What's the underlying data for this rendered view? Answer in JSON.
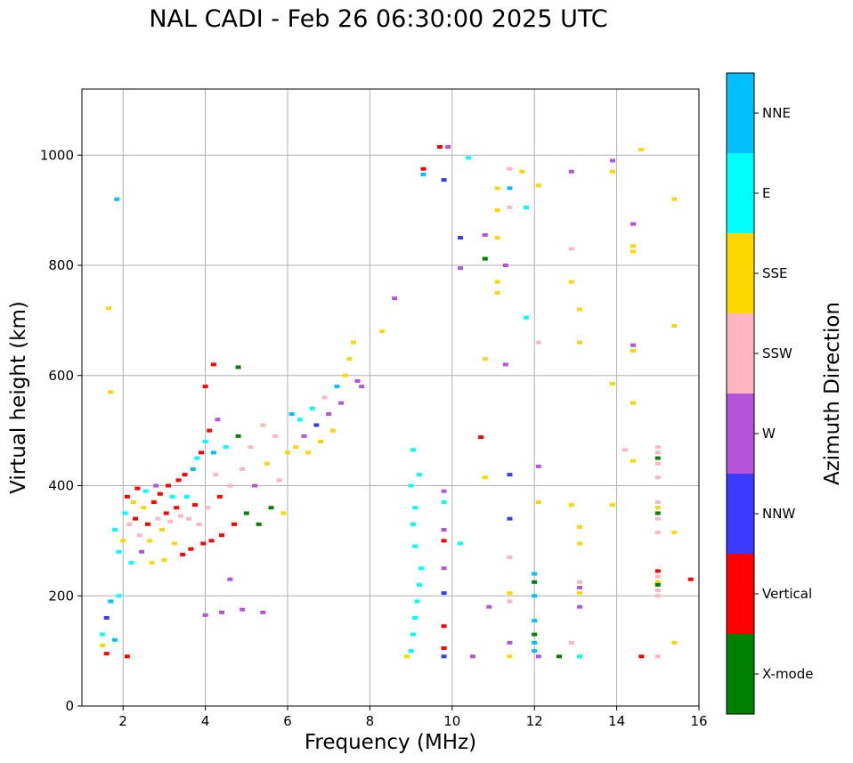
{
  "chart_data": {
    "type": "scatter",
    "title": "NAL CADI - Feb 26 06:30:00 2025 UTC",
    "xlabel": "Frequency (MHz)",
    "ylabel": "Virtual height (km)",
    "xlim": [
      1,
      16
    ],
    "ylim": [
      0,
      1120
    ],
    "xticks": [
      2,
      4,
      6,
      8,
      10,
      12,
      14,
      16
    ],
    "yticks": [
      0,
      200,
      400,
      600,
      800,
      1000
    ],
    "grid": true,
    "colorbar": {
      "label": "Azimuth Direction",
      "categories": [
        {
          "name": "X-mode",
          "color": "#008000"
        },
        {
          "name": "Vertical",
          "color": "#ff0000"
        },
        {
          "name": "NNW",
          "color": "#3a3aff"
        },
        {
          "name": "W",
          "color": "#b455d8"
        },
        {
          "name": "SSW",
          "color": "#ffb6c1"
        },
        {
          "name": "SSE",
          "color": "#ffd700"
        },
        {
          "name": "E",
          "color": "#00ffff"
        },
        {
          "name": "NNE",
          "color": "#00bfff"
        }
      ]
    },
    "points": [
      [
        1.5,
        110,
        "SSE"
      ],
      [
        1.5,
        130,
        "E"
      ],
      [
        1.6,
        95,
        "Vertical"
      ],
      [
        1.6,
        160,
        "NNW"
      ],
      [
        1.7,
        190,
        "NNE"
      ],
      [
        1.8,
        120,
        "NNE"
      ],
      [
        1.9,
        200,
        "E"
      ],
      [
        2.1,
        90,
        "Vertical"
      ],
      [
        1.85,
        920,
        "NNE"
      ],
      [
        1.65,
        722,
        "SSE"
      ],
      [
        1.7,
        570,
        "SSE"
      ],
      [
        1.8,
        320,
        "E"
      ],
      [
        1.9,
        280,
        "E"
      ],
      [
        2.0,
        300,
        "SSE"
      ],
      [
        2.05,
        350,
        "E"
      ],
      [
        2.1,
        380,
        "Vertical"
      ],
      [
        2.15,
        330,
        "SSW"
      ],
      [
        2.2,
        260,
        "E"
      ],
      [
        2.25,
        370,
        "SSE"
      ],
      [
        2.3,
        340,
        "Vertical"
      ],
      [
        2.35,
        395,
        "Vertical"
      ],
      [
        2.4,
        310,
        "SSW"
      ],
      [
        2.45,
        280,
        "W"
      ],
      [
        2.5,
        360,
        "SSE"
      ],
      [
        2.55,
        390,
        "E"
      ],
      [
        2.6,
        330,
        "Vertical"
      ],
      [
        2.65,
        300,
        "SSE"
      ],
      [
        2.7,
        260,
        "SSE"
      ],
      [
        2.75,
        370,
        "Vertical"
      ],
      [
        2.8,
        400,
        "W"
      ],
      [
        2.85,
        340,
        "SSW"
      ],
      [
        2.9,
        385,
        "Vertical"
      ],
      [
        2.95,
        320,
        "SSE"
      ],
      [
        3.0,
        265,
        "SSE"
      ],
      [
        3.05,
        350,
        "Vertical"
      ],
      [
        3.1,
        400,
        "Vertical"
      ],
      [
        3.15,
        335,
        "SSW"
      ],
      [
        3.2,
        380,
        "E"
      ],
      [
        3.25,
        295,
        "SSE"
      ],
      [
        3.3,
        360,
        "Vertical"
      ],
      [
        3.35,
        410,
        "Vertical"
      ],
      [
        3.4,
        345,
        "SSW"
      ],
      [
        3.45,
        275,
        "Vertical"
      ],
      [
        3.5,
        420,
        "Vertical"
      ],
      [
        3.55,
        380,
        "E"
      ],
      [
        3.6,
        340,
        "SSW"
      ],
      [
        3.65,
        285,
        "Vertical"
      ],
      [
        3.7,
        430,
        "NNE"
      ],
      [
        3.75,
        365,
        "Vertical"
      ],
      [
        3.8,
        450,
        "E"
      ],
      [
        3.85,
        330,
        "SSW"
      ],
      [
        3.9,
        460,
        "Vertical"
      ],
      [
        3.95,
        295,
        "Vertical"
      ],
      [
        4.0,
        480,
        "E"
      ],
      [
        4.05,
        360,
        "SSW"
      ],
      [
        4.1,
        500,
        "Vertical"
      ],
      [
        4.15,
        300,
        "Vertical"
      ],
      [
        4.2,
        460,
        "NNE"
      ],
      [
        4.25,
        420,
        "SSW"
      ],
      [
        4.3,
        520,
        "W"
      ],
      [
        4.35,
        380,
        "Vertical"
      ],
      [
        4.4,
        310,
        "Vertical"
      ],
      [
        4.5,
        470,
        "E"
      ],
      [
        4.6,
        400,
        "SSW"
      ],
      [
        4.7,
        330,
        "Vertical"
      ],
      [
        4.8,
        490,
        "Green"
      ],
      [
        4.9,
        430,
        "SSW"
      ],
      [
        5.0,
        350,
        "X-mode"
      ],
      [
        5.1,
        470,
        "SSW"
      ],
      [
        5.2,
        400,
        "W"
      ],
      [
        5.3,
        330,
        "X-mode"
      ],
      [
        5.4,
        510,
        "SSW"
      ],
      [
        5.5,
        440,
        "SSE"
      ],
      [
        5.6,
        360,
        "X-mode"
      ],
      [
        5.7,
        490,
        "SSW"
      ],
      [
        5.8,
        410,
        "SSW"
      ],
      [
        5.9,
        350,
        "SSE"
      ],
      [
        6.0,
        460,
        "SSE"
      ],
      [
        6.1,
        530,
        "NNE"
      ],
      [
        6.2,
        470,
        "SSE"
      ],
      [
        6.3,
        520,
        "E"
      ],
      [
        6.4,
        490,
        "W"
      ],
      [
        6.5,
        460,
        "SSE"
      ],
      [
        6.6,
        540,
        "E"
      ],
      [
        6.7,
        510,
        "NNW"
      ],
      [
        6.8,
        480,
        "SSE"
      ],
      [
        6.9,
        560,
        "SSW"
      ],
      [
        7.0,
        530,
        "W"
      ],
      [
        7.1,
        500,
        "SSE"
      ],
      [
        7.2,
        580,
        "NNE"
      ],
      [
        7.3,
        550,
        "W"
      ],
      [
        7.4,
        600,
        "SSE"
      ],
      [
        7.5,
        630,
        "SSE"
      ],
      [
        7.6,
        660,
        "SSE"
      ],
      [
        7.7,
        590,
        "W"
      ],
      [
        7.8,
        580,
        "W"
      ],
      [
        4.0,
        580,
        "Vertical"
      ],
      [
        4.2,
        620,
        "Vertical"
      ],
      [
        4.8,
        615,
        "X-mode"
      ],
      [
        4.0,
        165,
        "W"
      ],
      [
        4.4,
        170,
        "W"
      ],
      [
        4.6,
        230,
        "W"
      ],
      [
        4.9,
        175,
        "W"
      ],
      [
        5.4,
        170,
        "W"
      ],
      [
        8.3,
        680,
        "SSE"
      ],
      [
        8.6,
        740,
        "W"
      ],
      [
        8.9,
        90,
        "SSE"
      ],
      [
        9.0,
        100,
        "E"
      ],
      [
        9.05,
        130,
        "E"
      ],
      [
        9.1,
        160,
        "E"
      ],
      [
        9.15,
        190,
        "E"
      ],
      [
        9.2,
        220,
        "E"
      ],
      [
        9.25,
        250,
        "E"
      ],
      [
        9.1,
        290,
        "E"
      ],
      [
        9.05,
        330,
        "E"
      ],
      [
        9.1,
        360,
        "E"
      ],
      [
        9.0,
        400,
        "E"
      ],
      [
        9.05,
        465,
        "E"
      ],
      [
        9.2,
        420,
        "E"
      ],
      [
        9.3,
        975,
        "Vertical"
      ],
      [
        9.3,
        965,
        "NNE"
      ],
      [
        9.8,
        955,
        "NNW"
      ],
      [
        9.7,
        1015,
        "Vertical"
      ],
      [
        9.9,
        1015,
        "W"
      ],
      [
        9.8,
        390,
        "W"
      ],
      [
        9.8,
        320,
        "W"
      ],
      [
        9.8,
        300,
        "Vertical"
      ],
      [
        9.8,
        250,
        "W"
      ],
      [
        9.8,
        205,
        "NNW"
      ],
      [
        9.8,
        145,
        "Vertical"
      ],
      [
        9.8,
        105,
        "Vertical"
      ],
      [
        9.8,
        90,
        "NNW"
      ],
      [
        9.8,
        370,
        "E"
      ],
      [
        10.2,
        295,
        "E"
      ],
      [
        10.2,
        850,
        "NNW"
      ],
      [
        10.2,
        795,
        "W"
      ],
      [
        10.4,
        995,
        "E"
      ],
      [
        10.5,
        90,
        "W"
      ],
      [
        10.7,
        488,
        "Vertical"
      ],
      [
        10.8,
        630,
        "SSE"
      ],
      [
        10.8,
        415,
        "SSE"
      ],
      [
        10.9,
        180,
        "W"
      ],
      [
        10.8,
        812,
        "X-mode"
      ],
      [
        10.8,
        855,
        "W"
      ],
      [
        11.1,
        940,
        "SSE"
      ],
      [
        11.1,
        900,
        "SSE"
      ],
      [
        11.1,
        850,
        "SSE"
      ],
      [
        11.1,
        770,
        "SSE"
      ],
      [
        11.1,
        750,
        "SSE"
      ],
      [
        11.3,
        800,
        "W"
      ],
      [
        11.3,
        620,
        "W"
      ],
      [
        11.4,
        975,
        "SSW"
      ],
      [
        11.4,
        940,
        "NNE"
      ],
      [
        11.4,
        905,
        "SSW"
      ],
      [
        11.4,
        420,
        "NNW"
      ],
      [
        11.4,
        340,
        "NNW"
      ],
      [
        11.4,
        270,
        "SSW"
      ],
      [
        11.4,
        205,
        "SSE"
      ],
      [
        11.4,
        190,
        "SSW"
      ],
      [
        11.4,
        115,
        "W"
      ],
      [
        11.4,
        90,
        "SSE"
      ],
      [
        11.7,
        970,
        "SSE"
      ],
      [
        11.8,
        905,
        "E"
      ],
      [
        11.8,
        705,
        "E"
      ],
      [
        12.0,
        240,
        "NNE"
      ],
      [
        12.0,
        225,
        "X-mode"
      ],
      [
        12.0,
        200,
        "NNE"
      ],
      [
        12.0,
        155,
        "NNE"
      ],
      [
        12.0,
        130,
        "X-mode"
      ],
      [
        12.0,
        115,
        "NNE"
      ],
      [
        12.0,
        100,
        "NNE"
      ],
      [
        12.1,
        945,
        "SSE"
      ],
      [
        12.1,
        660,
        "SSW"
      ],
      [
        12.1,
        435,
        "W"
      ],
      [
        12.1,
        370,
        "SSE"
      ],
      [
        12.1,
        90,
        "W"
      ],
      [
        12.6,
        90,
        "X-mode"
      ],
      [
        12.9,
        970,
        "W"
      ],
      [
        12.9,
        830,
        "SSW"
      ],
      [
        12.9,
        770,
        "SSE"
      ],
      [
        12.9,
        365,
        "SSE"
      ],
      [
        12.9,
        115,
        "SSW"
      ],
      [
        13.1,
        720,
        "SSE"
      ],
      [
        13.1,
        660,
        "SSE"
      ],
      [
        13.1,
        325,
        "SSE"
      ],
      [
        13.1,
        295,
        "SSE"
      ],
      [
        13.1,
        225,
        "SSW"
      ],
      [
        13.1,
        215,
        "W"
      ],
      [
        13.1,
        205,
        "SSE"
      ],
      [
        13.1,
        180,
        "W"
      ],
      [
        13.1,
        90,
        "E"
      ],
      [
        13.9,
        990,
        "W"
      ],
      [
        13.9,
        970,
        "SSE"
      ],
      [
        13.9,
        585,
        "SSE"
      ],
      [
        13.9,
        365,
        "SSE"
      ],
      [
        14.2,
        465,
        "SSW"
      ],
      [
        14.4,
        875,
        "W"
      ],
      [
        14.4,
        835,
        "SSE"
      ],
      [
        14.4,
        825,
        "SSE"
      ],
      [
        14.4,
        655,
        "W"
      ],
      [
        14.4,
        645,
        "SSE"
      ],
      [
        14.4,
        550,
        "SSE"
      ],
      [
        14.4,
        445,
        "SSE"
      ],
      [
        14.6,
        1010,
        "SSE"
      ],
      [
        14.6,
        90,
        "Vertical"
      ],
      [
        15.0,
        470,
        "SSW"
      ],
      [
        15.0,
        460,
        "SSW"
      ],
      [
        15.0,
        450,
        "X-mode"
      ],
      [
        15.0,
        440,
        "SSW"
      ],
      [
        15.0,
        415,
        "SSW"
      ],
      [
        15.0,
        370,
        "SSW"
      ],
      [
        15.0,
        360,
        "SSE"
      ],
      [
        15.0,
        350,
        "X-mode"
      ],
      [
        15.0,
        340,
        "SSW"
      ],
      [
        15.0,
        315,
        "SSW"
      ],
      [
        15.0,
        245,
        "Vertical"
      ],
      [
        15.0,
        235,
        "SSW"
      ],
      [
        15.0,
        225,
        "SSE"
      ],
      [
        15.0,
        220,
        "X-mode"
      ],
      [
        15.0,
        210,
        "SSW"
      ],
      [
        15.0,
        200,
        "SSW"
      ],
      [
        15.0,
        90,
        "SSW"
      ],
      [
        15.4,
        920,
        "SSE"
      ],
      [
        15.4,
        690,
        "SSE"
      ],
      [
        15.4,
        315,
        "SSE"
      ],
      [
        15.4,
        115,
        "SSE"
      ],
      [
        15.8,
        230,
        "Vertical"
      ]
    ]
  }
}
